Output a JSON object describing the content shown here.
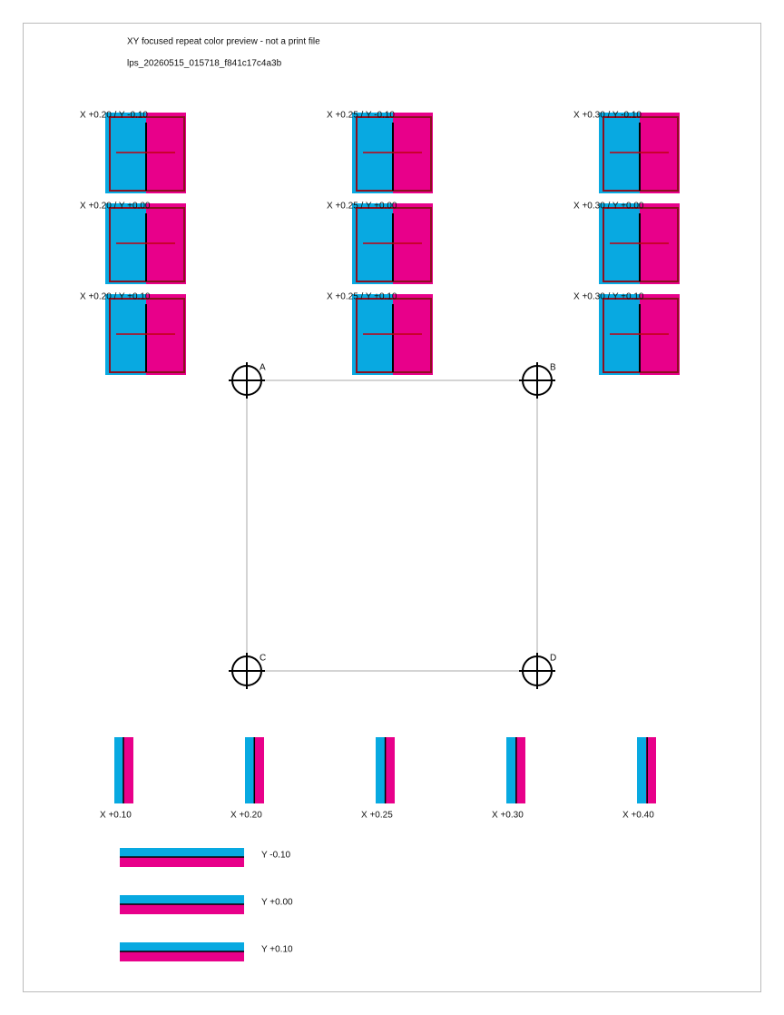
{
  "header": {
    "title": "XY focused repeat color preview - not a print file",
    "id": "lps_20260515_015718_f841c17c4a3b"
  },
  "tiles": [
    {
      "label": "X +0.20 / Y -0.10"
    },
    {
      "label": "X +0.25 / Y -0.10"
    },
    {
      "label": "X +0.30 / Y -0.10"
    },
    {
      "label": "X +0.20 / Y +0.00"
    },
    {
      "label": "X +0.25 / Y +0.00"
    },
    {
      "label": "X +0.30 / Y +0.00"
    },
    {
      "label": "X +0.20 / Y +0.10"
    },
    {
      "label": "X +0.25 / Y +0.10"
    },
    {
      "label": "X +0.30 / Y +0.10"
    }
  ],
  "registration_marks": [
    {
      "label": "A"
    },
    {
      "label": "B"
    },
    {
      "label": "C"
    },
    {
      "label": "D"
    }
  ],
  "x_strips": [
    {
      "label": "X +0.10"
    },
    {
      "label": "X +0.20"
    },
    {
      "label": "X +0.25"
    },
    {
      "label": "X +0.30"
    },
    {
      "label": "X +0.40"
    }
  ],
  "y_strips": [
    {
      "label": "Y -0.10"
    },
    {
      "label": "Y +0.00"
    },
    {
      "label": "Y +0.10"
    }
  ]
}
